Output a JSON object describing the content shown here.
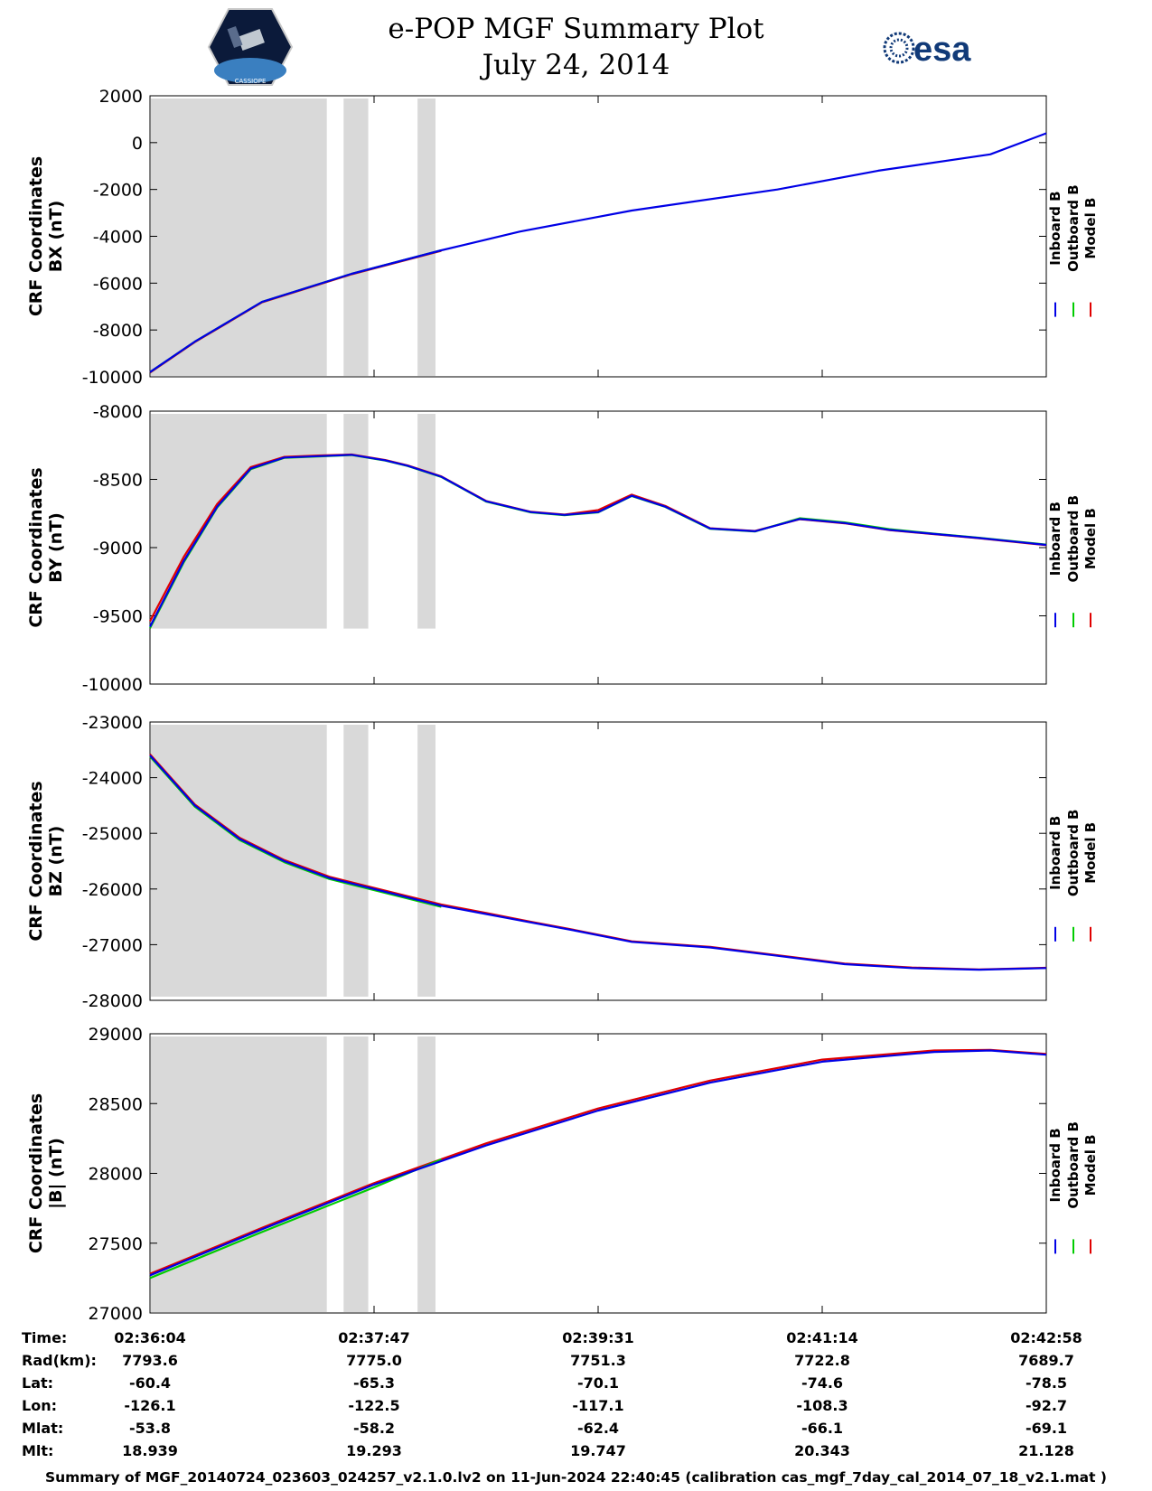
{
  "header": {
    "title_line1": "e-POP MGF Summary Plot",
    "title_line2": "July 24, 2014",
    "logo_left_text": "CASSIOPE",
    "logo_right_text": "esa"
  },
  "legend": [
    "Inboard B",
    "Outboard B",
    "Model B"
  ],
  "colors": {
    "inboard": "#0000e6",
    "outboard": "#00cc00",
    "model": "#e00000",
    "shade": "#d9d9d9",
    "esa": "#113a78"
  },
  "chart_data": [
    {
      "type": "line",
      "ylabel_line1": "CRF Coordinates",
      "ylabel_line2": "BX (nT)",
      "ylim": [
        -10000,
        2000
      ],
      "yticks": [
        2000,
        0,
        -2000,
        -4000,
        -6000,
        -8000,
        -10000
      ],
      "tick_labels": [
        "2000",
        "0",
        "-2000",
        "-4000",
        "-6000",
        "-8000",
        "-10000"
      ],
      "shade_top": 2000,
      "shade_bottom": -10000,
      "series": [
        {
          "name": "Inboard B",
          "x": [
            0,
            40,
            100,
            180,
            260,
            330,
            430,
            560,
            650,
            750,
            800
          ],
          "y": [
            -9800,
            -8500,
            -6800,
            -5600,
            -4600,
            -3800,
            -2900,
            -2000,
            -1200,
            -500,
            400
          ]
        },
        {
          "name": "Outboard B",
          "x": [
            0,
            40,
            100,
            180,
            260
          ],
          "y": [
            -9800,
            -8500,
            -6800,
            -5600,
            -4600
          ]
        },
        {
          "name": "Model B",
          "x": [
            0,
            40,
            100,
            180,
            260
          ],
          "y": [
            -9820,
            -8520,
            -6820,
            -5620,
            -4620
          ]
        }
      ]
    },
    {
      "type": "line",
      "ylabel_line1": "CRF Coordinates",
      "ylabel_line2": "BY (nT)",
      "ylim": [
        -10000,
        -8000
      ],
      "yticks": [
        -8000,
        -8500,
        -9000,
        -9500,
        -10000
      ],
      "tick_labels": [
        "-8000",
        "-8500",
        "-9000",
        "-9500",
        "-10000"
      ],
      "shade_top": -8000,
      "shade_bottom": -9600,
      "series": [
        {
          "name": "Inboard B",
          "x": [
            0,
            30,
            60,
            90,
            120,
            150,
            180,
            210,
            230,
            260,
            300,
            340,
            370,
            400,
            430,
            460,
            500,
            540,
            580,
            620,
            660,
            700,
            740,
            800
          ],
          "y": [
            -9580,
            -9100,
            -8700,
            -8420,
            -8340,
            -8330,
            -8320,
            -8360,
            -8400,
            -8480,
            -8660,
            -8740,
            -8760,
            -8740,
            -8620,
            -8700,
            -8860,
            -8880,
            -8790,
            -8820,
            -8870,
            -8900,
            -8930,
            -8980
          ]
        },
        {
          "name": "Outboard B",
          "x": [
            0,
            30,
            60,
            90,
            120,
            150,
            180,
            210,
            230,
            260,
            300,
            340,
            370,
            400,
            430,
            460,
            500,
            540,
            580,
            620,
            660,
            700,
            740,
            800
          ],
          "y": [
            -9590,
            -9110,
            -8705,
            -8425,
            -8342,
            -8332,
            -8322,
            -8362,
            -8402,
            -8482,
            -8662,
            -8742,
            -8762,
            -8742,
            -8622,
            -8702,
            -8862,
            -8882,
            -8785,
            -8815,
            -8865,
            -8898,
            -8928,
            -8978
          ]
        },
        {
          "name": "Model B",
          "x": [
            0,
            30,
            60,
            90,
            120,
            150,
            180,
            210,
            230,
            260,
            300,
            340,
            370,
            400,
            430,
            460,
            500,
            540,
            580,
            620,
            660,
            700,
            740,
            800
          ],
          "y": [
            -9540,
            -9070,
            -8680,
            -8410,
            -8335,
            -8325,
            -8318,
            -8358,
            -8398,
            -8478,
            -8658,
            -8738,
            -8758,
            -8725,
            -8612,
            -8695,
            -8858,
            -8878,
            -8792,
            -8822,
            -8872,
            -8902,
            -8932,
            -8982
          ]
        }
      ]
    },
    {
      "type": "line",
      "ylabel_line1": "CRF Coordinates",
      "ylabel_line2": "BZ (nT)",
      "ylim": [
        -28000,
        -23000
      ],
      "yticks": [
        -23000,
        -24000,
        -25000,
        -26000,
        -27000,
        -28000
      ],
      "tick_labels": [
        "-23000",
        "-24000",
        "-25000",
        "-26000",
        "-27000",
        "-28000"
      ],
      "shade_top": -23000,
      "shade_bottom": -27950,
      "series": [
        {
          "name": "Inboard B",
          "x": [
            0,
            40,
            80,
            120,
            160,
            200,
            260,
            300,
            340,
            380,
            430,
            500,
            560,
            620,
            680,
            740,
            800
          ],
          "y": [
            -23600,
            -24500,
            -25100,
            -25500,
            -25800,
            -26000,
            -26300,
            -26450,
            -26600,
            -26750,
            -26950,
            -27050,
            -27200,
            -27350,
            -27420,
            -27450,
            -27420
          ]
        },
        {
          "name": "Outboard B",
          "x": [
            0,
            40,
            80,
            120,
            160,
            200,
            260
          ],
          "y": [
            -23620,
            -24520,
            -25120,
            -25520,
            -25820,
            -26020,
            -26320
          ]
        },
        {
          "name": "Model B",
          "x": [
            0,
            40,
            80,
            120,
            160,
            200,
            260,
            300,
            340,
            380,
            430,
            500,
            560,
            620,
            680,
            740,
            800
          ],
          "y": [
            -23580,
            -24480,
            -25080,
            -25480,
            -25780,
            -25980,
            -26280,
            -26430,
            -26590,
            -26740,
            -26940,
            -27040,
            -27190,
            -27340,
            -27410,
            -27445,
            -27415
          ]
        }
      ]
    },
    {
      "type": "line",
      "ylabel_line1": "CRF Coordinates",
      "ylabel_line2": "|B| (nT)",
      "ylim": [
        27000,
        29000
      ],
      "yticks": [
        29000,
        28500,
        28000,
        27500,
        27000
      ],
      "tick_labels": [
        "29000",
        "28500",
        "28000",
        "27500",
        "27000"
      ],
      "shade_top": 29000,
      "shade_bottom": 27000,
      "series": [
        {
          "name": "Inboard B",
          "x": [
            0,
            100,
            200,
            300,
            400,
            500,
            600,
            700,
            750,
            800
          ],
          "y": [
            27270,
            27600,
            27920,
            28200,
            28450,
            28650,
            28800,
            28870,
            28880,
            28850
          ]
        },
        {
          "name": "Outboard B",
          "x": [
            0,
            100,
            200,
            260
          ],
          "y": [
            27250,
            27580,
            27900,
            28100
          ]
        },
        {
          "name": "Model B",
          "x": [
            0,
            100,
            200,
            300,
            400,
            500,
            600,
            700,
            750,
            800
          ],
          "y": [
            27280,
            27610,
            27930,
            28215,
            28465,
            28665,
            28815,
            28880,
            28885,
            28855
          ]
        }
      ]
    }
  ],
  "shaded_intervals": [
    [
      0,
      157
    ],
    [
      172,
      194
    ],
    [
      238,
      254
    ]
  ],
  "axis_info": {
    "row_labels": [
      "Time:",
      "Rad(km):",
      "Lat:",
      "Lon:",
      "Mlat:",
      "Mlt:"
    ],
    "columns": [
      [
        "02:36:04",
        "7793.6",
        "-60.4",
        "-126.1",
        "-53.8",
        "18.939"
      ],
      [
        "02:37:47",
        "7775.0",
        "-65.3",
        "-122.5",
        "-58.2",
        "19.293"
      ],
      [
        "02:39:31",
        "7751.3",
        "-70.1",
        "-117.1",
        "-62.4",
        "19.747"
      ],
      [
        "02:41:14",
        "7722.8",
        "-74.6",
        "-108.3",
        "-66.1",
        "20.343"
      ],
      [
        "02:42:58",
        "7689.7",
        "-78.5",
        "-92.7",
        "-69.1",
        "21.128"
      ]
    ]
  },
  "footer": "Summary of MGF_20140724_023603_024257_v2.1.0.lv2 on 11-Jun-2024 22:40:45 (calibration cas_mgf_7day_cal_2014_07_18_v2.1.mat )"
}
